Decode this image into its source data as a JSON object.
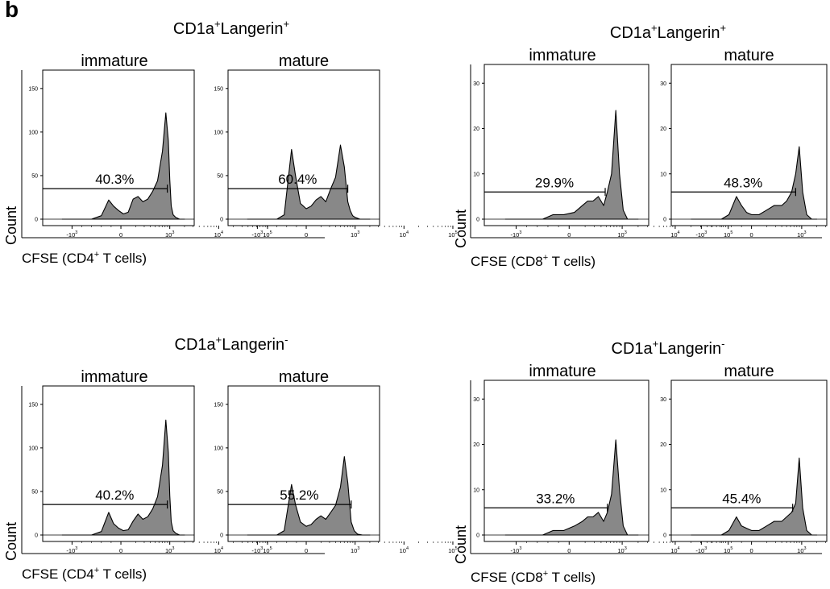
{
  "figure": {
    "panel_letter": "b",
    "x_ticks": [
      "-10^3",
      "0",
      "10^3",
      "10^4",
      "10^5"
    ],
    "fill_color": "#888888",
    "line_color": "#000000"
  },
  "chart_data": [
    {
      "type": "area",
      "group": "CD1a+Langerin+",
      "title_main": "CD1a",
      "title_sup1": "+",
      "title_mid": "Langerin",
      "title_sup2": "+",
      "ylabel": "Count",
      "xlabel_pre": "CFSE (CD4",
      "xlabel_sup": "+",
      "xlabel_post": " T cells)",
      "ylim": [
        0,
        160
      ],
      "yticks": [
        "0",
        "50",
        "100",
        "150"
      ],
      "subplots": [
        {
          "label": "immature",
          "gate_percent": "40.3%",
          "gate_start": -1.6,
          "gate_end": 0.95,
          "gate_count": 35,
          "x": [
            -1.2,
            -0.9,
            -0.6,
            -0.4,
            -0.25,
            -0.15,
            -0.05,
            0.05,
            0.15,
            0.25,
            0.35,
            0.45,
            0.55,
            0.65,
            0.75,
            0.85,
            0.92,
            0.97,
            1.0,
            1.03,
            1.07,
            1.12,
            1.2,
            1.3
          ],
          "y": [
            0,
            0,
            0,
            4,
            22,
            15,
            10,
            6,
            8,
            23,
            26,
            20,
            23,
            32,
            44,
            78,
            122,
            90,
            45,
            15,
            5,
            2,
            0,
            0
          ]
        },
        {
          "label": "mature",
          "gate_percent": "60.4%",
          "gate_start": -1.6,
          "gate_end": 0.85,
          "gate_count": 35,
          "x": [
            -1.2,
            -0.9,
            -0.6,
            -0.45,
            -0.3,
            -0.22,
            -0.12,
            0.0,
            0.1,
            0.2,
            0.3,
            0.4,
            0.5,
            0.6,
            0.7,
            0.78,
            0.85,
            0.9,
            0.95,
            1.0,
            1.1,
            1.2,
            1.3
          ],
          "y": [
            0,
            0,
            0,
            5,
            80,
            50,
            18,
            12,
            15,
            22,
            26,
            20,
            35,
            48,
            85,
            60,
            20,
            10,
            4,
            2,
            0,
            0,
            0
          ]
        }
      ]
    },
    {
      "type": "area",
      "group": "CD1a+Langerin+",
      "title_main": "CD1a",
      "title_sup1": "+",
      "title_mid": "Langerin",
      "title_sup2": "+",
      "ylabel": "Count",
      "xlabel_pre": "CFSE (CD8",
      "xlabel_sup": "+",
      "xlabel_post": " T cells)",
      "ylim": [
        0,
        32
      ],
      "yticks": [
        "0",
        "10",
        "20",
        "30"
      ],
      "subplots": [
        {
          "label": "immature",
          "gate_percent": "29.9%",
          "gate_start": -1.6,
          "gate_end": 0.68,
          "gate_count": 6,
          "x": [
            -1.2,
            -0.8,
            -0.5,
            -0.3,
            -0.1,
            0.1,
            0.25,
            0.35,
            0.45,
            0.55,
            0.65,
            0.72,
            0.8,
            0.88,
            0.95,
            1.02,
            1.1,
            1.2,
            1.3
          ],
          "y": [
            0,
            0,
            0,
            1,
            1,
            1.5,
            3,
            4,
            4,
            5,
            3,
            6,
            10,
            24,
            10,
            2,
            0,
            0,
            0
          ]
        },
        {
          "label": "mature",
          "gate_percent": "48.3%",
          "gate_start": -1.6,
          "gate_end": 0.88,
          "gate_count": 6,
          "x": [
            -1.2,
            -0.9,
            -0.6,
            -0.45,
            -0.3,
            -0.2,
            -0.1,
            0.0,
            0.15,
            0.3,
            0.45,
            0.6,
            0.7,
            0.8,
            0.88,
            0.95,
            1.02,
            1.1,
            1.2,
            1.3
          ],
          "y": [
            0,
            0,
            0,
            1,
            5,
            3,
            1.5,
            1,
            1,
            2,
            3,
            3,
            4,
            6,
            10,
            16,
            6,
            1,
            0,
            0
          ]
        }
      ]
    },
    {
      "type": "area",
      "group": "CD1a+Langerin-",
      "title_main": "CD1a",
      "title_sup1": "+",
      "title_mid": "Langerin",
      "title_sup2": "-",
      "ylabel": "Count",
      "xlabel_pre": "CFSE (CD4",
      "xlabel_sup": "+",
      "xlabel_post": " T cells)",
      "ylim": [
        0,
        160
      ],
      "yticks": [
        "0",
        "50",
        "100",
        "150"
      ],
      "subplots": [
        {
          "label": "immature",
          "gate_percent": "40.2%",
          "gate_start": -1.6,
          "gate_end": 0.95,
          "gate_count": 35,
          "x": [
            -1.2,
            -0.9,
            -0.6,
            -0.4,
            -0.25,
            -0.15,
            -0.05,
            0.05,
            0.15,
            0.25,
            0.35,
            0.45,
            0.55,
            0.65,
            0.75,
            0.85,
            0.92,
            0.97,
            1.0,
            1.03,
            1.07,
            1.12,
            1.2,
            1.3
          ],
          "y": [
            0,
            0,
            0,
            4,
            26,
            13,
            8,
            5,
            6,
            16,
            24,
            18,
            21,
            30,
            44,
            80,
            132,
            95,
            45,
            15,
            5,
            2,
            0,
            0
          ]
        },
        {
          "label": "mature",
          "gate_percent": "55.2%",
          "gate_start": -1.6,
          "gate_end": 0.92,
          "gate_count": 35,
          "x": [
            -1.2,
            -0.9,
            -0.6,
            -0.45,
            -0.3,
            -0.22,
            -0.12,
            0.0,
            0.1,
            0.2,
            0.3,
            0.4,
            0.5,
            0.6,
            0.7,
            0.78,
            0.85,
            0.92,
            0.98,
            1.05,
            1.15,
            1.3
          ],
          "y": [
            0,
            0,
            0,
            5,
            58,
            35,
            15,
            10,
            12,
            18,
            22,
            18,
            26,
            34,
            55,
            90,
            60,
            15,
            5,
            1,
            0,
            0
          ]
        }
      ]
    },
    {
      "type": "area",
      "group": "CD1a+Langerin-",
      "title_main": "CD1a",
      "title_sup1": "+",
      "title_mid": "Langerin",
      "title_sup2": "-",
      "ylabel": "Count",
      "xlabel_pre": "CFSE (CD8",
      "xlabel_sup": "+",
      "xlabel_post": " T cells)",
      "ylim": [
        0,
        32
      ],
      "yticks": [
        "0",
        "10",
        "20",
        "30"
      ],
      "subplots": [
        {
          "label": "immature",
          "gate_percent": "33.2%",
          "gate_start": -1.6,
          "gate_end": 0.72,
          "gate_count": 6,
          "x": [
            -1.2,
            -0.8,
            -0.5,
            -0.3,
            -0.1,
            0.1,
            0.25,
            0.35,
            0.45,
            0.55,
            0.65,
            0.72,
            0.8,
            0.88,
            0.95,
            1.02,
            1.1,
            1.2,
            1.3
          ],
          "y": [
            0,
            0,
            0,
            1,
            1,
            2,
            3,
            4,
            4,
            5,
            3,
            5,
            9,
            21,
            10,
            2,
            0,
            0,
            0
          ]
        },
        {
          "label": "mature",
          "gate_percent": "45.4%",
          "gate_start": -1.6,
          "gate_end": 0.82,
          "gate_count": 6,
          "x": [
            -1.2,
            -0.9,
            -0.6,
            -0.45,
            -0.3,
            -0.2,
            -0.1,
            0.0,
            0.15,
            0.3,
            0.45,
            0.6,
            0.7,
            0.8,
            0.88,
            0.95,
            1.02,
            1.1,
            1.2,
            1.3
          ],
          "y": [
            0,
            0,
            0,
            1,
            4,
            2,
            1.5,
            1,
            1,
            2,
            3,
            3,
            4,
            5,
            7,
            17,
            6,
            1,
            0,
            0
          ]
        }
      ]
    }
  ]
}
